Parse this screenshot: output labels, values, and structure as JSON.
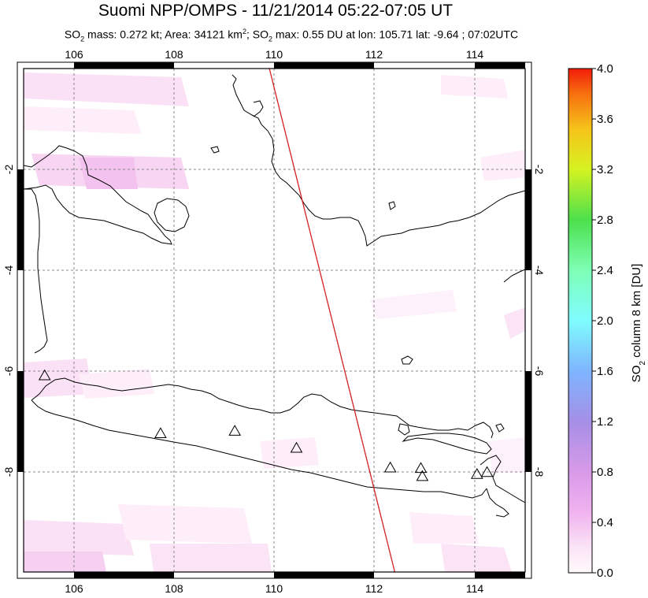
{
  "header": {
    "title": "Suomi NPP/OMPS - 11/21/2014 05:22-07:05 UT",
    "subtitle": {
      "part1": "SO",
      "sub1": "2",
      "part2": " mass: 0.272 kt; Area: 34121 km",
      "sup1": "2",
      "part3": "; SO",
      "sub2": "2",
      "part4": " max: 0.55 DU at lon: 105.71 lat: -9.64 ; 07:02UTC"
    }
  },
  "map": {
    "lon_ticks": [
      "106",
      "108",
      "110",
      "112",
      "114"
    ],
    "lat_ticks": [
      "-2",
      "-4",
      "-6",
      "-8"
    ],
    "lon_range": [
      105,
      115
    ],
    "lat_range": [
      -10,
      0
    ],
    "volcano_marker": "triangle-icon",
    "volcanoes": [
      {
        "lon": 105.42,
        "lat": -6.1
      },
      {
        "lon": 107.73,
        "lat": -7.25
      },
      {
        "lon": 109.21,
        "lat": -7.2
      },
      {
        "lon": 110.44,
        "lat": -7.54
      },
      {
        "lon": 112.31,
        "lat": -7.93
      },
      {
        "lon": 112.92,
        "lat": -7.94
      },
      {
        "lon": 112.95,
        "lat": -8.1
      },
      {
        "lon": 114.04,
        "lat": -8.06
      },
      {
        "lon": 114.24,
        "lat": -8.02
      }
    ],
    "orbit_line": {
      "color": "#d42020",
      "start": {
        "lon": 109.9,
        "lat": 0.0
      },
      "end": {
        "lon": 112.4,
        "lat": -10.0
      }
    }
  },
  "colorbar": {
    "label_pre": "SO",
    "label_sub": "2",
    "label_post": " column 8 km [DU]",
    "ticks": [
      "4.0",
      "3.6",
      "3.2",
      "2.8",
      "2.4",
      "2.0",
      "1.6",
      "1.2",
      "0.8",
      "0.4",
      "0.0"
    ],
    "range": [
      0.0,
      4.0
    ],
    "colors": [
      "#fffafa",
      "#f5c8f0",
      "#e89bf0",
      "#a88ce8",
      "#7fa6ff",
      "#7ffcff",
      "#7effb8",
      "#4ce04c",
      "#cff31f",
      "#f7c71b",
      "#f87d0f",
      "#f21c0a"
    ]
  }
}
